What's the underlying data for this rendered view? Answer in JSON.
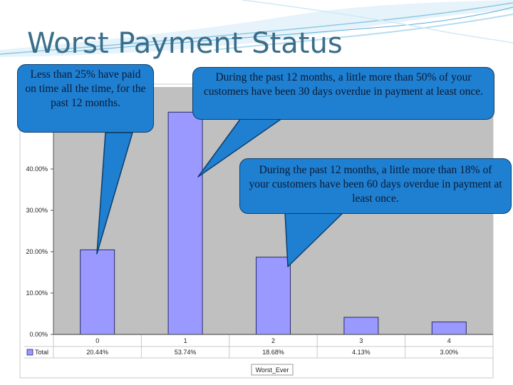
{
  "slide": {
    "title": "Worst Payment Status"
  },
  "callouts": [
    {
      "text": "Less than 25% have paid on time all the time, for the past 12 months."
    },
    {
      "text": "During the past 12 months, a little more than 50% of your customers have been 30 days overdue  in payment at least once."
    },
    {
      "text": "During the past 12 months, a little more than 18% of your customers have been 60 days overdue in payment at least once."
    }
  ],
  "colors": {
    "bar_fill": "#9999ff",
    "bar_stroke": "#2a2a6a",
    "plot_bg": "#c0c0c0",
    "callout_fill": "#1f7fd1",
    "title": "#3a6d8a"
  },
  "chart_data": {
    "type": "bar",
    "categories": [
      "0",
      "1",
      "2",
      "3",
      "4"
    ],
    "series": [
      {
        "name": "Total",
        "values": [
          20.44,
          53.74,
          18.68,
          4.13,
          3.0
        ],
        "labels": [
          "20.44%",
          "53.74%",
          "18.68%",
          "4.13%",
          "3.00%"
        ]
      }
    ],
    "ylim": [
      0,
      60
    ],
    "yticks": [
      0,
      10,
      20,
      30,
      40
    ],
    "ytick_labels": [
      "0.00%",
      "10.00%",
      "20.00%",
      "30.00%",
      "40.00%"
    ],
    "xlabel": "Worst_Ever",
    "legend_position": "bottom-left",
    "data_table": true,
    "grid": false
  }
}
